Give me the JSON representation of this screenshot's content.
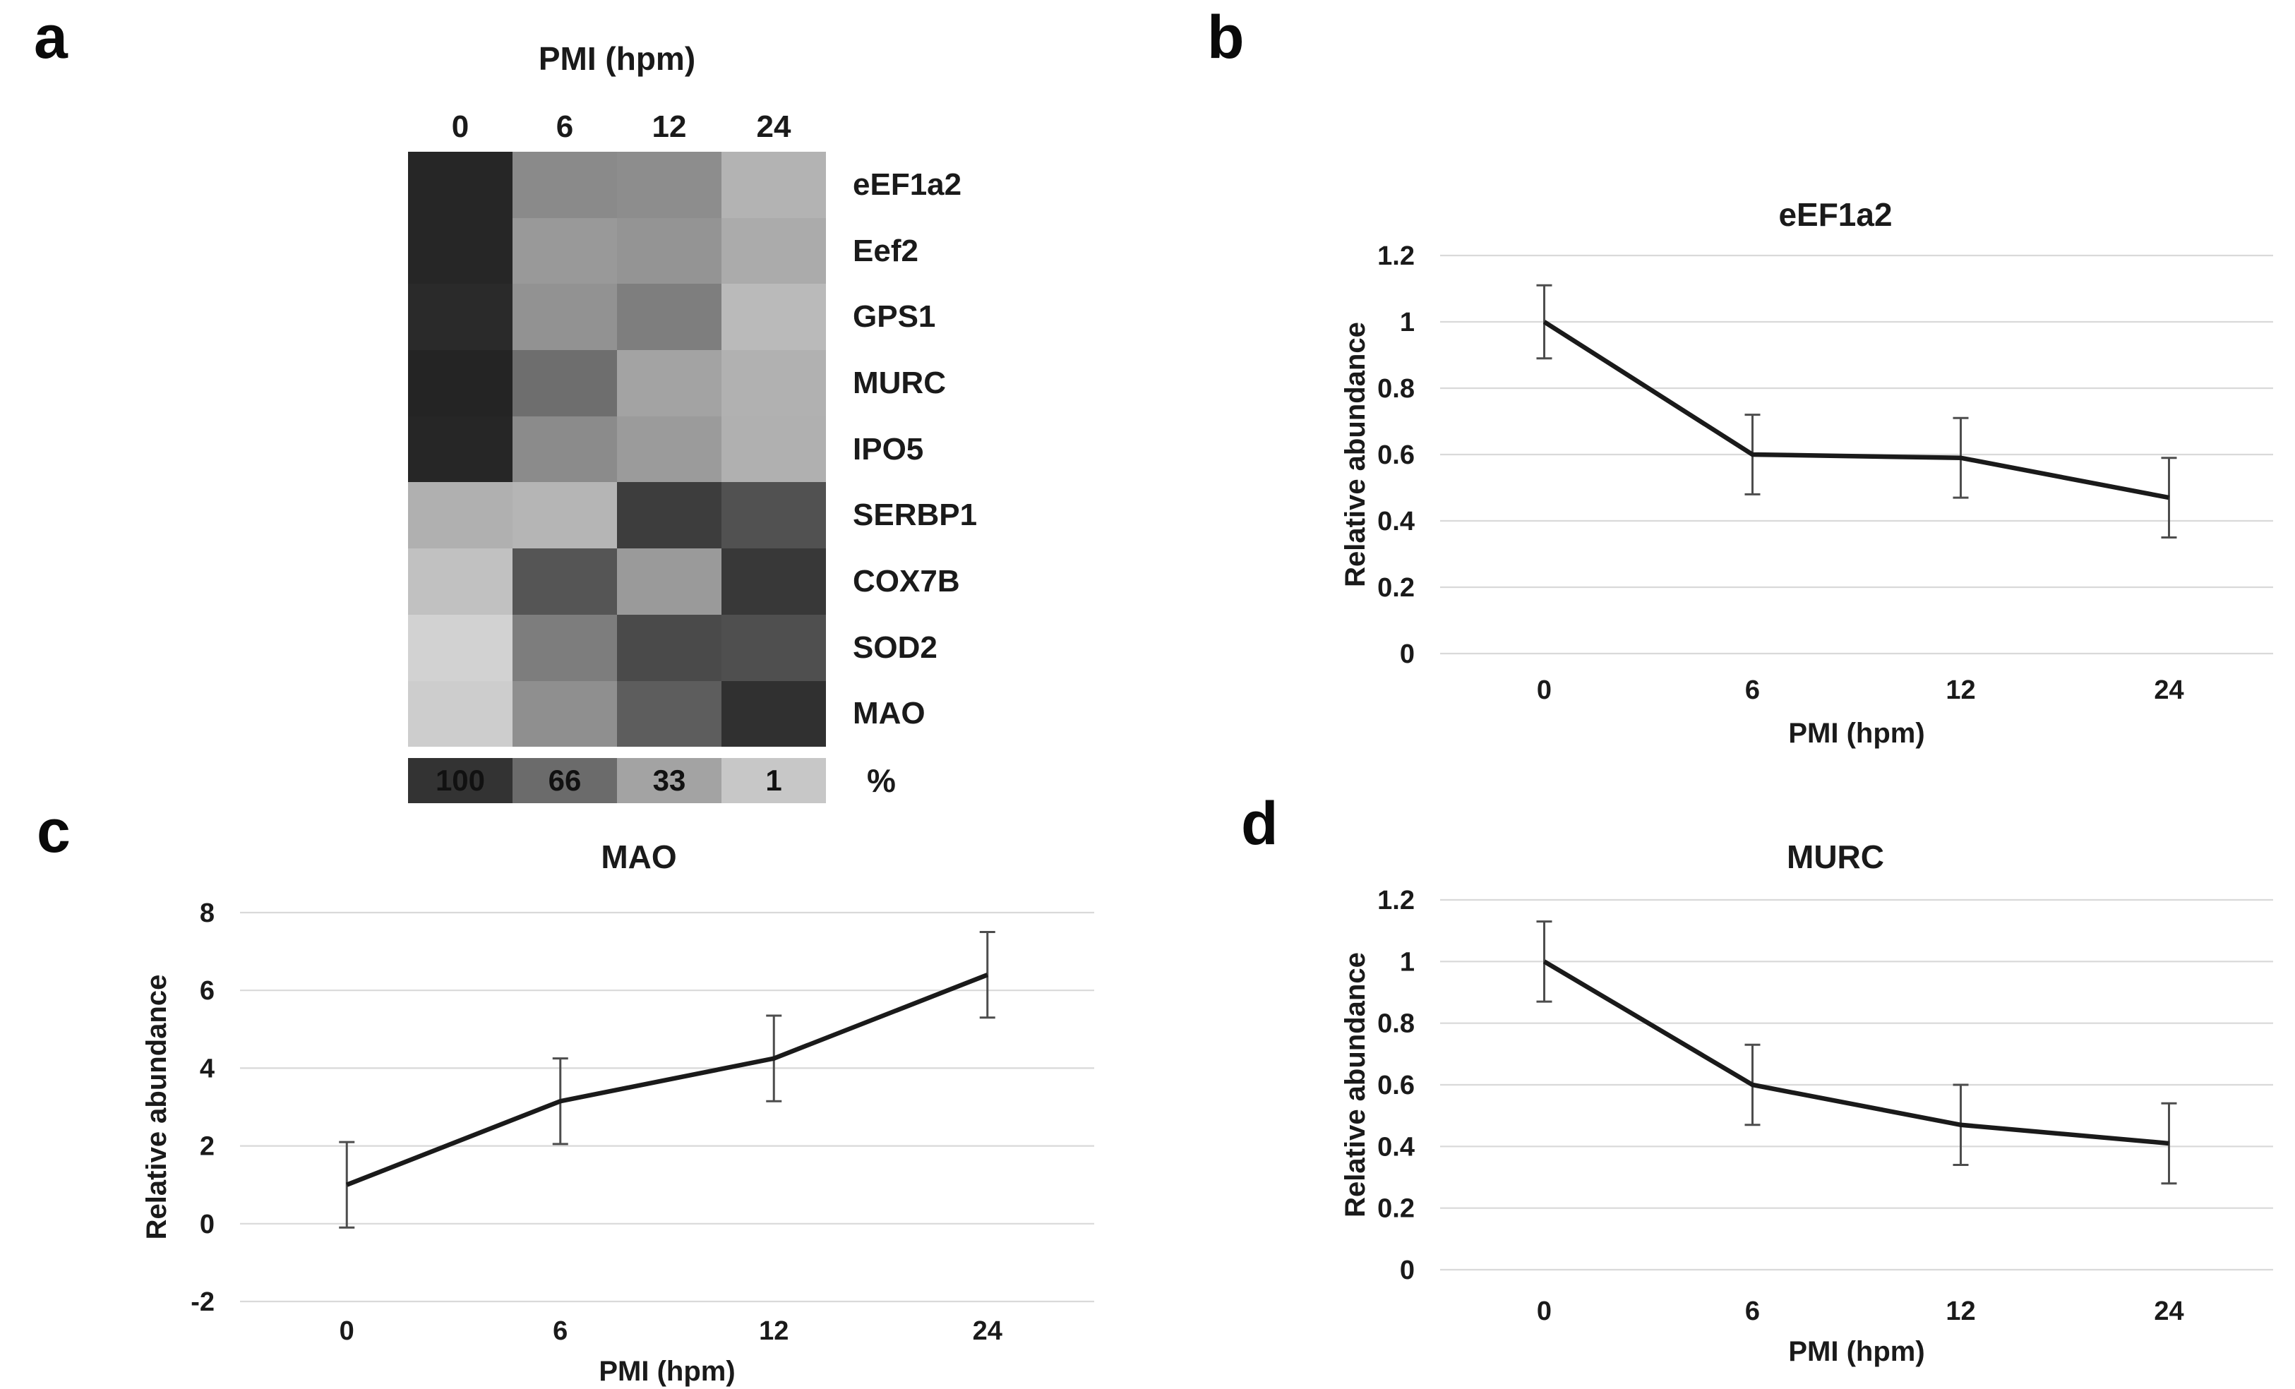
{
  "figure": {
    "panels": {
      "a": {
        "label": "a"
      },
      "b": {
        "label": "b"
      },
      "c": {
        "label": "c"
      },
      "d": {
        "label": "d"
      }
    }
  },
  "chart_data": [
    {
      "type": "heatmap",
      "title": "PMI (hpm)",
      "columns": [
        "0",
        "6",
        "12",
        "24"
      ],
      "rows": [
        "eEF1a2",
        "Eef2",
        "GPS1",
        "MURC",
        "IPO5",
        "SERBP1",
        "COX7B",
        "SOD2",
        "MAO"
      ],
      "cell_colors": [
        [
          "#262626",
          "#8a8a8a",
          "#8d8d8d",
          "#b3b3b3"
        ],
        [
          "#262626",
          "#999999",
          "#949494",
          "#ababab"
        ],
        [
          "#2a2a2a",
          "#929292",
          "#7e7e7e",
          "#bababa"
        ],
        [
          "#242424",
          "#6e6e6e",
          "#a3a3a3",
          "#b1b1b1"
        ],
        [
          "#262626",
          "#8b8b8b",
          "#9b9b9b",
          "#b0b0b0"
        ],
        [
          "#b0b0b0",
          "#b5b5b5",
          "#3d3d3d",
          "#515151"
        ],
        [
          "#c1c1c1",
          "#555555",
          "#9a9a9a",
          "#383838"
        ],
        [
          "#d2d2d2",
          "#7d7d7d",
          "#4a4a4a",
          "#4f4f4f"
        ],
        [
          "#cdcdcd",
          "#8f8f8f",
          "#5d5d5d",
          "#303030"
        ]
      ],
      "values_pct_est": [
        [
          100,
          41,
          39,
          14
        ],
        [
          100,
          31,
          35,
          19
        ],
        [
          100,
          36,
          49,
          9
        ],
        [
          100,
          60,
          25,
          15
        ],
        [
          100,
          41,
          30,
          16
        ],
        [
          16,
          12,
          93,
          80
        ],
        [
          4,
          77,
          31,
          97
        ],
        [
          1,
          50,
          85,
          81
        ],
        [
          1,
          38,
          72,
          100
        ]
      ],
      "scale": {
        "values": [
          "100",
          "66",
          "33",
          "1"
        ],
        "colors": [
          "#333333",
          "#6b6b6b",
          "#a3a3a3",
          "#c7c7c7"
        ],
        "unit": "%"
      }
    },
    {
      "type": "line",
      "title": "eEF1a2",
      "categories": [
        "0",
        "6",
        "12",
        "24"
      ],
      "values": [
        1.0,
        0.6,
        0.59,
        0.47
      ],
      "error_bars": [
        0.11,
        0.12,
        0.12,
        0.12
      ],
      "xlabel": "PMI (hpm)",
      "ylabel": "Relative abundance",
      "ylim": [
        0,
        1.2
      ],
      "yticks": [
        0,
        0.2,
        0.4,
        0.6,
        0.8,
        1,
        1.2
      ],
      "grid": true,
      "legend": false,
      "line_color": "#1a1a1a"
    },
    {
      "type": "line",
      "title": "MAO",
      "categories": [
        "0",
        "6",
        "12",
        "24"
      ],
      "values": [
        1.0,
        3.15,
        4.25,
        6.4
      ],
      "error_bars": [
        1.1,
        1.1,
        1.1,
        1.1
      ],
      "xlabel": "PMI (hpm)",
      "ylabel": "Relative abundance",
      "ylim": [
        -2,
        8
      ],
      "yticks": [
        -2,
        0,
        2,
        4,
        6,
        8
      ],
      "grid": true,
      "legend": false,
      "line_color": "#1a1a1a"
    },
    {
      "type": "line",
      "title": "MURC",
      "categories": [
        "0",
        "6",
        "12",
        "24"
      ],
      "values": [
        1.0,
        0.6,
        0.47,
        0.41
      ],
      "error_bars": [
        0.13,
        0.13,
        0.13,
        0.13
      ],
      "xlabel": "PMI (hpm)",
      "ylabel": "Relative abundance",
      "ylim": [
        0,
        1.2
      ],
      "yticks": [
        0,
        0.2,
        0.4,
        0.6,
        0.8,
        1,
        1.2
      ],
      "grid": true,
      "legend": false,
      "line_color": "#1a1a1a"
    }
  ]
}
